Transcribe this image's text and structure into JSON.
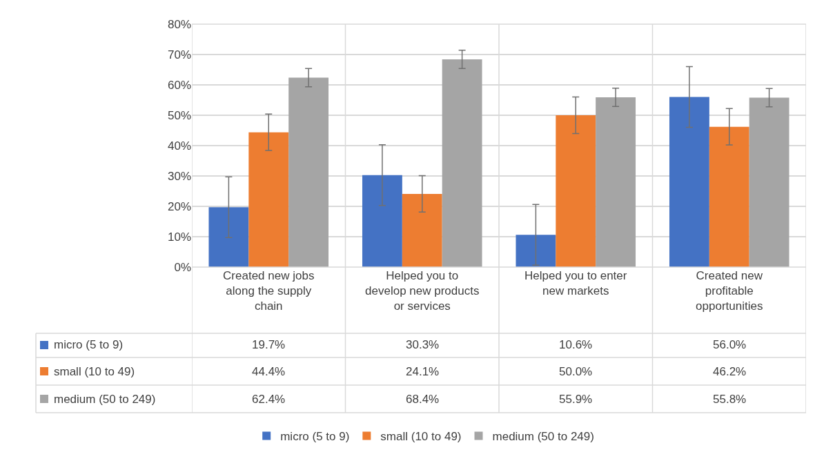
{
  "chart_data": {
    "type": "bar",
    "categories": [
      "Created new jobs along the supply chain",
      "Helped you to develop new products or services",
      "Helped you to enter new markets",
      "Created new profitable opportunities"
    ],
    "series": [
      {
        "name": "micro (5 to 9)",
        "color": "#4472c4",
        "values": [
          19.7,
          30.3,
          10.6,
          56.0
        ],
        "value_labels": [
          "19.7%",
          "30.3%",
          "10.6%",
          "56.0%"
        ],
        "errors": [
          10,
          10,
          10,
          10
        ]
      },
      {
        "name": "small (10 to 49)",
        "color": "#ed7d31",
        "values": [
          44.4,
          24.1,
          50.0,
          46.2
        ],
        "value_labels": [
          "44.4%",
          "24.1%",
          "50.0%",
          "46.2%"
        ],
        "errors": [
          6,
          6,
          6,
          6
        ]
      },
      {
        "name": "medium (50 to 249)",
        "color": "#a5a5a5",
        "values": [
          62.4,
          68.4,
          55.9,
          55.8
        ],
        "value_labels": [
          "62.4%",
          "68.4%",
          "55.9%",
          "55.8%"
        ],
        "errors": [
          3,
          3,
          3,
          3
        ]
      }
    ],
    "ylim": [
      0,
      80
    ],
    "yticks": [
      {
        "value": 0,
        "label": "0%"
      },
      {
        "value": 10,
        "label": "10%"
      },
      {
        "value": 20,
        "label": "20%"
      },
      {
        "value": 30,
        "label": "30%"
      },
      {
        "value": 40,
        "label": "40%"
      },
      {
        "value": 50,
        "label": "50%"
      },
      {
        "value": 60,
        "label": "60%"
      },
      {
        "value": 70,
        "label": "70%"
      },
      {
        "value": 80,
        "label": "80%"
      }
    ],
    "grid": true,
    "legend": "bottom"
  }
}
